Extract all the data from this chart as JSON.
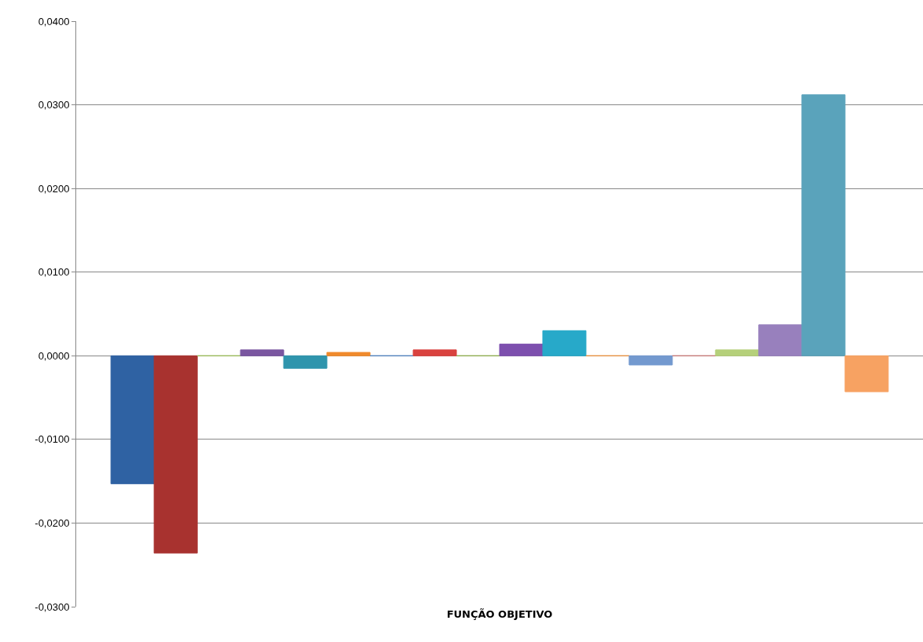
{
  "chart_data": {
    "type": "bar",
    "categories": [
      "FUNÇÃO OBJETIVO"
    ],
    "series": [
      {
        "color": "#2f62a3",
        "values": [
          -0.0153
        ]
      },
      {
        "color": "#a8322f",
        "values": [
          -0.0236
        ]
      },
      {
        "color": "#9bbb59",
        "values": [
          0
        ]
      },
      {
        "color": "#7a56a0",
        "values": [
          0.0007
        ]
      },
      {
        "color": "#2f95ad",
        "values": [
          -0.0015
        ]
      },
      {
        "color": "#f08a2c",
        "values": [
          0.0004
        ]
      },
      {
        "color": "#4f81bd",
        "values": [
          0
        ]
      },
      {
        "color": "#d9423f",
        "values": [
          0.0007
        ]
      },
      {
        "color": "#8fae4f",
        "values": [
          0
        ]
      },
      {
        "color": "#7d4fae",
        "values": [
          0.0014
        ]
      },
      {
        "color": "#27a9c9",
        "values": [
          0.003
        ]
      },
      {
        "color": "#e8913f",
        "values": [
          0
        ]
      },
      {
        "color": "#7399cf",
        "values": [
          -0.0011
        ]
      },
      {
        "color": "#c77a78",
        "values": [
          0
        ]
      },
      {
        "color": "#b5d07a",
        "values": [
          0.0007
        ]
      },
      {
        "color": "#9880bd",
        "values": [
          0.0037
        ]
      },
      {
        "color": "#5aa3bb",
        "values": [
          0.0312
        ]
      },
      {
        "color": "#f7a262",
        "values": [
          -0.0043
        ]
      }
    ],
    "ylim": [
      -0.03,
      0.04
    ],
    "yticks": [
      {
        "value": -0.03,
        "label": "-0,0300"
      },
      {
        "value": -0.02,
        "label": "-0,0200"
      },
      {
        "value": -0.01,
        "label": "-0,0100"
      },
      {
        "value": 0,
        "label": "0,0000"
      },
      {
        "value": 0.01,
        "label": "0,0100"
      },
      {
        "value": 0.02,
        "label": "0,0200"
      },
      {
        "value": 0.03,
        "label": "0,0300"
      },
      {
        "value": 0.04,
        "label": "0,0400"
      }
    ],
    "grid": "y"
  }
}
